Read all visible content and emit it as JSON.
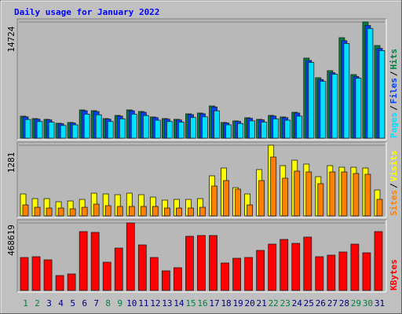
{
  "chart_data": [
    {
      "type": "bar",
      "title": "Daily usage for January 2022",
      "legend_separator": "/",
      "ylim": [
        0,
        14724
      ],
      "yticks": [
        14724
      ],
      "series": [
        {
          "name": "Pages",
          "color": "#00e0ff",
          "values": [
            2368,
            2114,
            2030,
            1607,
            1692,
            3044,
            2960,
            2114,
            2452,
            3044,
            2876,
            2283,
            2114,
            2030,
            2621,
            2706,
            3467,
            1692,
            1861,
            2199,
            2030,
            2452,
            2283,
            2791,
            9600,
            7200,
            8100,
            12000,
            7600,
            13900,
            11100
          ]
        },
        {
          "name": "Files",
          "color": "#0040ff",
          "values": [
            2702,
            2412,
            2316,
            1833,
            1930,
            3474,
            3378,
            2412,
            2798,
            3474,
            3282,
            2605,
            2412,
            2316,
            2991,
            3088,
            3957,
            1930,
            2123,
            2509,
            2316,
            2798,
            2605,
            3185,
            9844,
            7431,
            8299,
            12352,
            7816,
            14282,
            11387
          ]
        },
        {
          "name": "Hits",
          "color": "#008040",
          "values": [
            2786,
            2487,
            2388,
            1890,
            1990,
            3581,
            3482,
            2487,
            2885,
            3581,
            3383,
            2686,
            2487,
            2388,
            3084,
            3184,
            4079,
            1990,
            2189,
            2587,
            2388,
            2885,
            2686,
            3283,
            10148,
            7661,
            8556,
            12734,
            8058,
            14724,
            11739
          ]
        }
      ]
    },
    {
      "type": "bar",
      "legend_separator": "/",
      "ylim": [
        0,
        1281
      ],
      "yticks": [
        1281
      ],
      "series": [
        {
          "name": "Sites",
          "color": "#ff8000",
          "values": [
            199,
            156,
            142,
            142,
            128,
            156,
            213,
            185,
            171,
            171,
            171,
            171,
            142,
            142,
            142,
            156,
            541,
            640,
            484,
            199,
            640,
            1067,
            683,
            811,
            797,
            584,
            797,
            797,
            768,
            754,
            299
          ]
        },
        {
          "name": "Visits",
          "color": "#ffff00",
          "values": [
            398,
            313,
            313,
            256,
            270,
            299,
            412,
            398,
            384,
            412,
            384,
            341,
            285,
            299,
            299,
            313,
            726,
            868,
            512,
            398,
            840,
            1281,
            911,
            1010,
            939,
            711,
            911,
            882,
            882,
            868,
            470
          ]
        }
      ]
    },
    {
      "type": "bar",
      "ylim": [
        0,
        468619
      ],
      "yticks": [
        468619
      ],
      "categories": [
        "1",
        "2",
        "3",
        "4",
        "5",
        "6",
        "7",
        "8",
        "9",
        "10",
        "11",
        "12",
        "13",
        "14",
        "15",
        "16",
        "17",
        "18",
        "19",
        "20",
        "21",
        "22",
        "23",
        "24",
        "25",
        "26",
        "27",
        "28",
        "29",
        "30",
        "31"
      ],
      "category_colors": [
        "#008040",
        "#008040",
        "#000080",
        "#000080",
        "#000080",
        "#000080",
        "#000080",
        "#008040",
        "#008040",
        "#000080",
        "#000080",
        "#000080",
        "#000080",
        "#000080",
        "#008040",
        "#008040",
        "#000080",
        "#000080",
        "#000080",
        "#000080",
        "#000080",
        "#008040",
        "#008040",
        "#000080",
        "#000080",
        "#000080",
        "#000080",
        "#000080",
        "#008040",
        "#008040",
        "#000080"
      ],
      "series": [
        {
          "name": "KBytes",
          "color": "#ff0000",
          "values": [
            228858,
            234307,
            212511,
            103531,
            114429,
            408675,
            403226,
            196164,
            294246,
            468619,
            316042,
            228858,
            136225,
            158021,
            375981,
            381430,
            381430,
            190715,
            223409,
            228858,
            277899,
            321491,
            354185,
            326940,
            370532,
            234307,
            245205,
            267001,
            321491,
            261552,
            408675
          ]
        }
      ]
    }
  ]
}
